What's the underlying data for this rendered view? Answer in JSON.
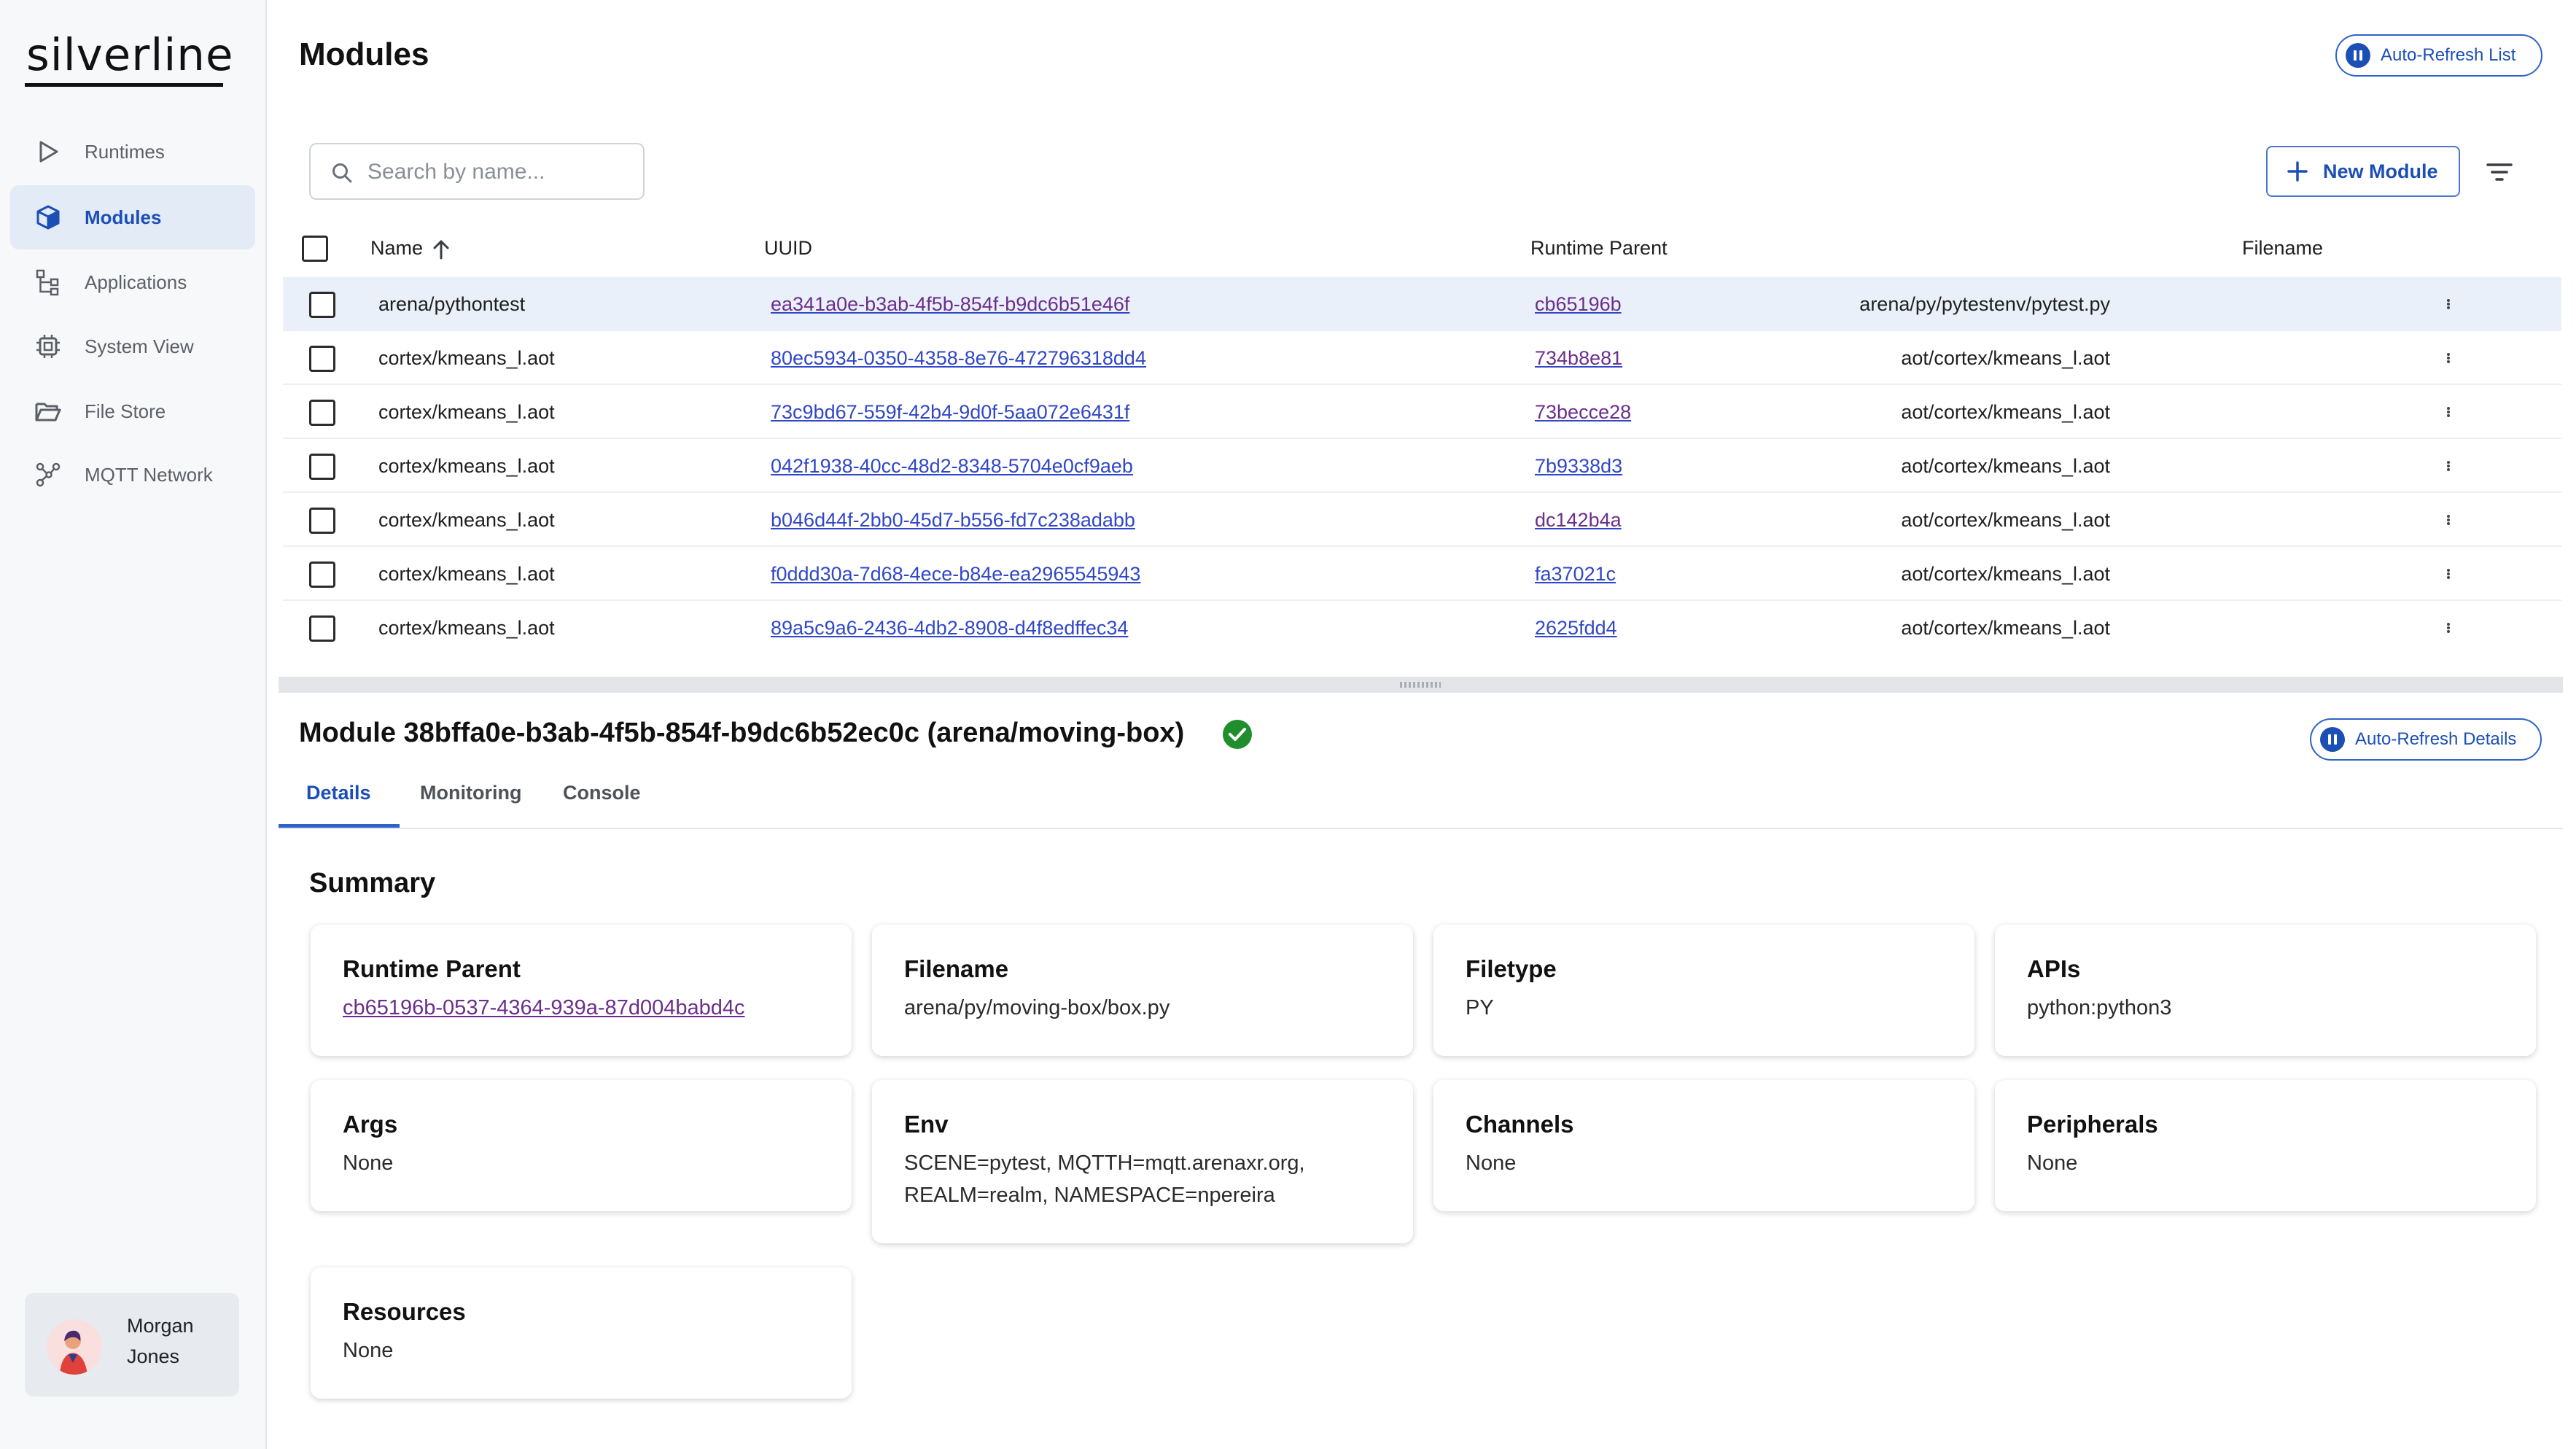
{
  "app": {
    "logo": "silverline"
  },
  "sidebar": {
    "items": [
      {
        "label": "Runtimes",
        "icon": "play-triangle-icon"
      },
      {
        "label": "Modules",
        "icon": "cube-icon",
        "active": true
      },
      {
        "label": "Applications",
        "icon": "hierarchy-icon"
      },
      {
        "label": "System View",
        "icon": "chip-icon"
      },
      {
        "label": "File Store",
        "icon": "folder-open-icon"
      },
      {
        "label": "MQTT Network",
        "icon": "network-nodes-icon"
      }
    ],
    "user": {
      "first": "Morgan",
      "last": "Jones"
    }
  },
  "header": {
    "title": "Modules",
    "auto_refresh_list": "Auto-Refresh List"
  },
  "list": {
    "search_placeholder": "Search by name...",
    "new_module_label": "New Module",
    "columns": {
      "name": "Name",
      "uuid": "UUID",
      "runtime_parent": "Runtime Parent",
      "filename": "Filename"
    },
    "rows": [
      {
        "name": "arena/pythontest",
        "uuid": "ea341a0e-b3ab-4f5b-854f-b9dc6b51e46f",
        "parent": "cb65196b",
        "filename": "arena/py/pytestenv/pytest.py"
      },
      {
        "name": "cortex/kmeans_l.aot",
        "uuid": "80ec5934-0350-4358-8e76-472796318dd4",
        "parent": "734b8e81",
        "filename": "aot/cortex/kmeans_l.aot"
      },
      {
        "name": "cortex/kmeans_l.aot",
        "uuid": "73c9bd67-559f-42b4-9d0f-5aa072e6431f",
        "parent": "73becce28",
        "filename": "aot/cortex/kmeans_l.aot"
      },
      {
        "name": "cortex/kmeans_l.aot",
        "uuid": "042f1938-40cc-48d2-8348-5704e0cf9aeb",
        "parent": "7b9338d3",
        "filename": "aot/cortex/kmeans_l.aot"
      },
      {
        "name": "cortex/kmeans_l.aot",
        "uuid": "b046d44f-2bb0-45d7-b556-fd7c238adabb",
        "parent": "dc142b4a",
        "filename": "aot/cortex/kmeans_l.aot"
      },
      {
        "name": "cortex/kmeans_l.aot",
        "uuid": "f0ddd30a-7d68-4ece-b84e-ea2965545943",
        "parent": "fa37021c",
        "filename": "aot/cortex/kmeans_l.aot"
      },
      {
        "name": "cortex/kmeans_l.aot",
        "uuid": "89a5c9a6-2436-4db2-8908-d4f8edffec34",
        "parent": "2625fdd4",
        "filename": "aot/cortex/kmeans_l.aot"
      }
    ]
  },
  "details": {
    "title": "Module 38bffa0e-b3ab-4f5b-854f-b9dc6b52ec0c (arena/moving-box)",
    "auto_refresh_details": "Auto-Refresh Details",
    "tabs": [
      "Details",
      "Monitoring",
      "Console"
    ],
    "summary_heading": "Summary",
    "cards": {
      "runtime_parent": {
        "title": "Runtime Parent",
        "value": "cb65196b-0537-4364-939a-87d004babd4c"
      },
      "filename": {
        "title": "Filename",
        "value": "arena/py/moving-box/box.py"
      },
      "filetype": {
        "title": "Filetype",
        "value": "PY"
      },
      "apis": {
        "title": "APIs",
        "value": "python:python3"
      },
      "args": {
        "title": "Args",
        "value": "None"
      },
      "env": {
        "title": "Env",
        "value": "SCENE=pytest, MQTTH=mqtt.arenaxr.org, REALM=realm, NAMESPACE=npereira"
      },
      "channels": {
        "title": "Channels",
        "value": "None"
      },
      "peripherals": {
        "title": "Peripherals",
        "value": "None"
      },
      "resources": {
        "title": "Resources",
        "value": "None"
      }
    }
  },
  "colors": {
    "accent": "#1c4fb5",
    "link": "#3047c8",
    "success": "#1f8f2e",
    "row_highlight": "#eaf0f9"
  }
}
